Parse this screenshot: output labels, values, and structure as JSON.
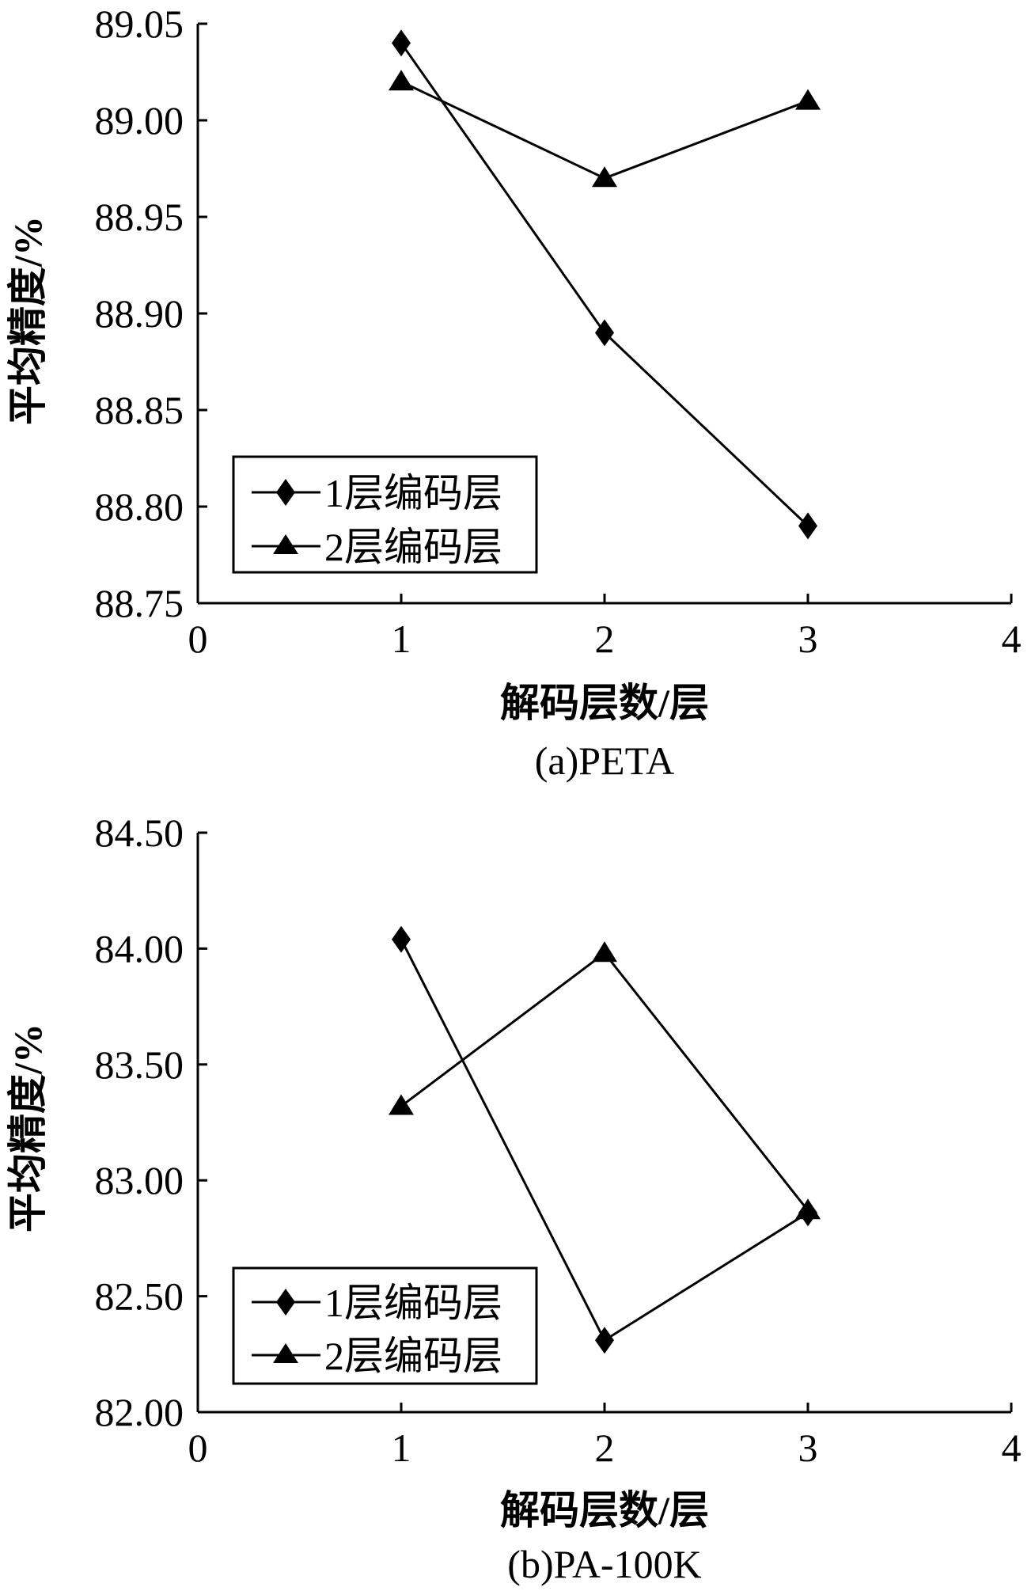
{
  "chart_data": [
    {
      "type": "line",
      "caption": "(a)PETA",
      "xlabel": "解码层数/层",
      "ylabel": "平均精度/%",
      "xlim": [
        0,
        4
      ],
      "ylim": [
        88.75,
        89.05
      ],
      "x_ticks": [
        "0",
        "1",
        "2",
        "3",
        "4"
      ],
      "y_ticks": [
        "88.75",
        "88.80",
        "88.85",
        "88.90",
        "88.95",
        "89.00",
        "89.05"
      ],
      "x": [
        1,
        2,
        3
      ],
      "series": [
        {
          "name": "1层编码层",
          "marker": "diamond",
          "values": [
            89.04,
            88.89,
            88.79
          ]
        },
        {
          "name": "2层编码层",
          "marker": "triangle",
          "values": [
            89.02,
            88.97,
            89.01
          ]
        }
      ],
      "legend_position": "bottom-left",
      "grid": false
    },
    {
      "type": "line",
      "caption": "(b)PA-100K",
      "xlabel": "解码层数/层",
      "ylabel": "平均精度/%",
      "xlim": [
        0,
        4
      ],
      "ylim": [
        82.0,
        84.5
      ],
      "x_ticks": [
        "0",
        "1",
        "2",
        "3",
        "4"
      ],
      "y_ticks": [
        "82.00",
        "82.50",
        "83.00",
        "83.50",
        "84.00",
        "84.50"
      ],
      "x": [
        1,
        2,
        3
      ],
      "series": [
        {
          "name": "1层编码层",
          "marker": "diamond",
          "values": [
            84.04,
            82.31,
            82.86
          ]
        },
        {
          "name": "2层编码层",
          "marker": "triangle",
          "values": [
            83.32,
            83.98,
            82.87
          ]
        }
      ],
      "legend_position": "bottom-left",
      "grid": false
    }
  ]
}
